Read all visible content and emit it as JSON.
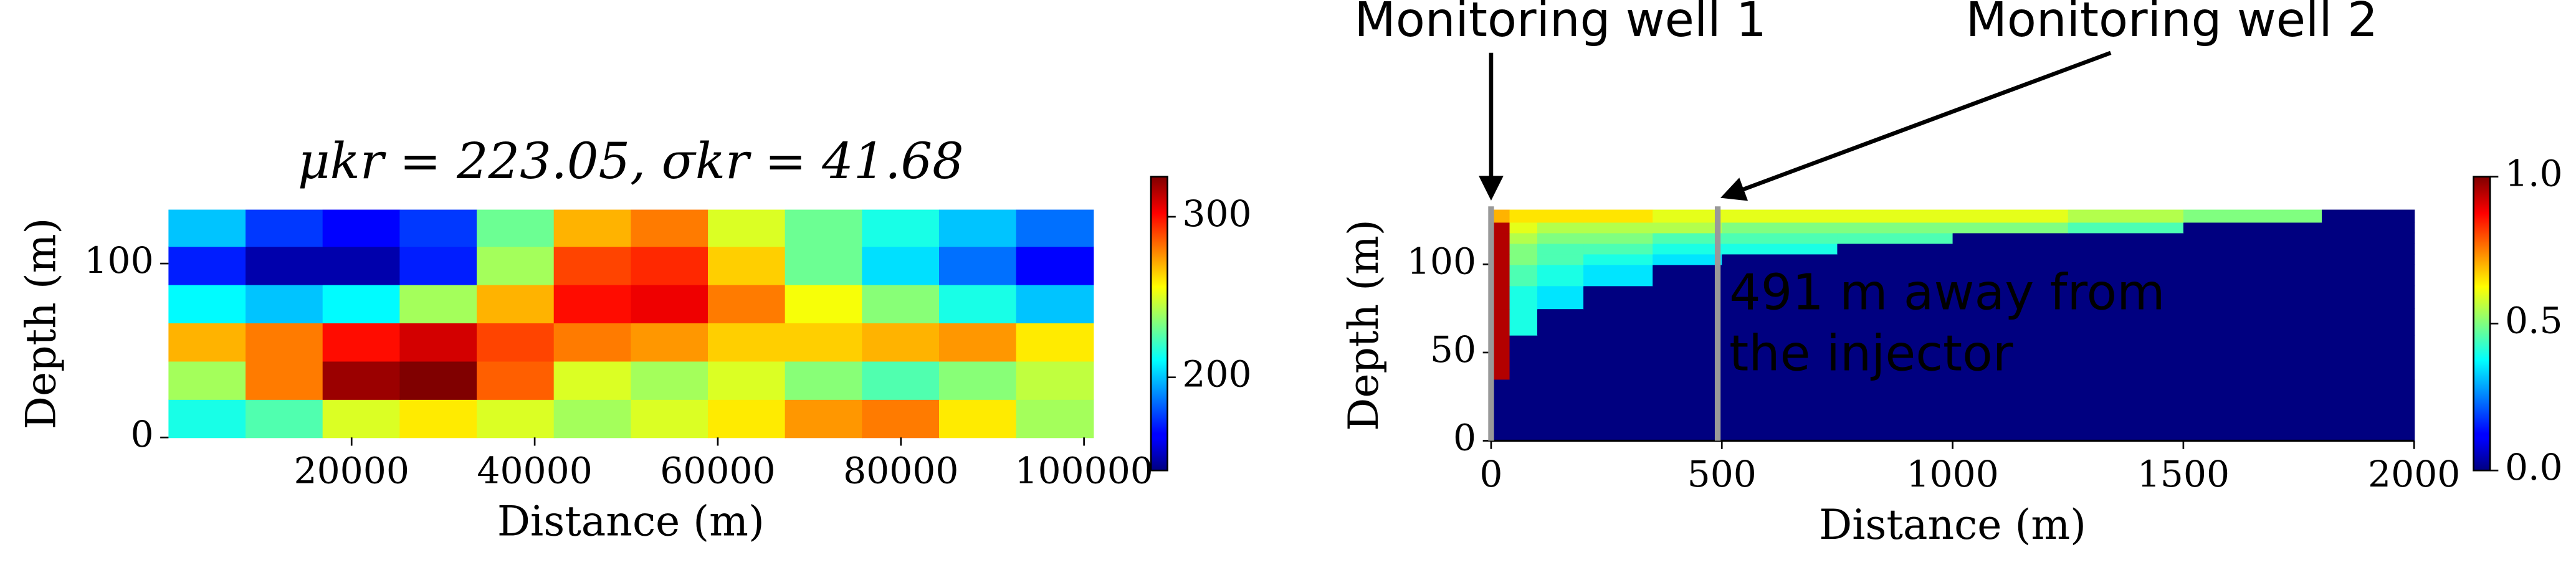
{
  "chart_data": [
    {
      "type": "heatmap",
      "title": "μkr = 223.05, σkr = 41.68",
      "x_label": "Distance (m)",
      "y_label": "Depth (m)",
      "x_edges": [
        0,
        8417,
        16833,
        25250,
        33667,
        42083,
        50500,
        58917,
        67333,
        75750,
        84167,
        92583,
        101000
      ],
      "y_edges": [
        0,
        22,
        44,
        66,
        88,
        110,
        131
      ],
      "z": [
        [
          215,
          225,
          250,
          260,
          250,
          240,
          250,
          260,
          275,
          280,
          260,
          240
        ],
        [
          240,
          280,
          320,
          325,
          285,
          250,
          240,
          250,
          235,
          225,
          235,
          245
        ],
        [
          270,
          280,
          300,
          310,
          290,
          280,
          275,
          265,
          265,
          270,
          275,
          260
        ],
        [
          210,
          200,
          210,
          240,
          270,
          300,
          305,
          280,
          255,
          235,
          215,
          200
        ],
        [
          170,
          150,
          150,
          170,
          240,
          290,
          295,
          265,
          230,
          205,
          185,
          165
        ],
        [
          200,
          175,
          165,
          175,
          230,
          270,
          280,
          250,
          230,
          215,
          200,
          185
        ]
      ],
      "xlim": [
        0,
        101000
      ],
      "ylim": [
        0,
        131
      ],
      "xticks": [
        20000,
        40000,
        60000,
        80000,
        100000
      ],
      "yticks": [
        0,
        100
      ],
      "clim": [
        142,
        325
      ],
      "cticks": [
        200,
        300
      ],
      "colormap": "jet",
      "spines": false
    },
    {
      "type": "heatmap",
      "x_label": "Distance (m)",
      "y_label": "Depth (m)",
      "x_edges": [
        0,
        40,
        100,
        200,
        350,
        500,
        750,
        1000,
        1250,
        1500,
        1800,
        2000
      ],
      "y_edges": [
        0,
        35,
        60,
        75,
        88,
        100,
        106,
        112,
        118,
        124,
        131
      ],
      "z": [
        [
          0,
          0,
          0,
          0,
          0,
          0,
          0,
          0,
          0,
          0,
          0
        ],
        [
          0.95,
          0,
          0,
          0,
          0,
          0,
          0,
          0,
          0,
          0,
          0
        ],
        [
          0.95,
          0.4,
          0,
          0,
          0,
          0,
          0,
          0,
          0,
          0,
          0
        ],
        [
          0.95,
          0.4,
          0.35,
          0,
          0,
          0,
          0,
          0,
          0,
          0,
          0
        ],
        [
          0.95,
          0.45,
          0.4,
          0.35,
          0,
          0,
          0,
          0,
          0,
          0,
          0
        ],
        [
          0.95,
          0.5,
          0.45,
          0.4,
          0.35,
          0,
          0,
          0,
          0,
          0,
          0
        ],
        [
          0.95,
          0.5,
          0.45,
          0.45,
          0.4,
          0.4,
          0,
          0,
          0,
          0,
          0
        ],
        [
          0.95,
          0.55,
          0.5,
          0.5,
          0.45,
          0.45,
          0.45,
          0,
          0,
          0,
          0
        ],
        [
          0.95,
          0.6,
          0.55,
          0.55,
          0.55,
          0.5,
          0.5,
          0.5,
          0.45,
          0,
          0
        ],
        [
          0.7,
          0.65,
          0.65,
          0.65,
          0.6,
          0.6,
          0.6,
          0.6,
          0.55,
          0.5,
          0
        ]
      ],
      "xlim": [
        0,
        2000
      ],
      "ylim": [
        0,
        131
      ],
      "xticks": [
        0,
        500,
        1000,
        1500,
        2000
      ],
      "yticks": [
        0,
        50,
        100
      ],
      "clim": [
        0,
        1
      ],
      "cticks": [
        {
          "value": 0,
          "label": "0.0"
        },
        0.5,
        {
          "value": 1,
          "label": "1.0"
        }
      ],
      "colormap": "jet",
      "spines": true,
      "wells": [
        {
          "name": "Monitoring well 1",
          "x": 0,
          "color": "#999999"
        },
        {
          "name": "Monitoring well 2",
          "x": 491,
          "color": "#999999"
        }
      ],
      "annotation": [
        "491 m away from",
        "the injector"
      ]
    }
  ]
}
